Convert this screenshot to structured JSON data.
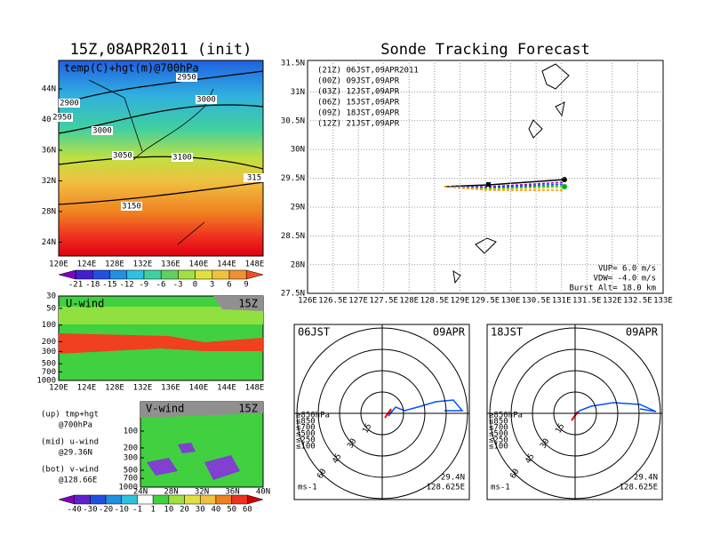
{
  "left_map": {
    "title": "15Z,08APR2011 (init)",
    "label": "temp(C)+hgt(m)@700hPa",
    "yticks": [
      "44N",
      "40N",
      "36N",
      "32N",
      "28N",
      "24N"
    ],
    "xticks": [
      "120E",
      "124E",
      "128E",
      "132E",
      "136E",
      "140E",
      "144E",
      "148E"
    ],
    "contour_labels": [
      "2900",
      "2950",
      "2950",
      "3000",
      "3000",
      "3050",
      "3100",
      "3150",
      "315"
    ],
    "colorbar": [
      -21,
      -18,
      -15,
      -12,
      -9,
      -6,
      -3,
      0,
      3,
      6,
      9
    ]
  },
  "u_wind": {
    "label": "U-wind",
    "time": "15Z",
    "yticks": [
      30,
      50,
      100,
      200,
      300,
      500,
      700,
      1000
    ],
    "xticks": [
      "120E",
      "124E",
      "128E",
      "132E",
      "136E",
      "140E",
      "144E",
      "148E"
    ]
  },
  "notes": [
    "(up) tmp+hgt",
    "@700hPa",
    "(mid) u-wind",
    "@29.36N",
    "(bot) v-wind",
    "@128.66E"
  ],
  "v_wind": {
    "label": "V-wind",
    "time": "15Z",
    "yticks": [
      100,
      200,
      300,
      500,
      700,
      1000
    ],
    "xticks": [
      "24N",
      "28N",
      "32N",
      "36N",
      "40N"
    ],
    "colorbar": [
      -40,
      -30,
      -20,
      -10,
      -1,
      1,
      10,
      20,
      30,
      40,
      50,
      60
    ]
  },
  "tracking": {
    "title": "Sonde Tracking Forecast",
    "yticks": [
      "31.5N",
      "31N",
      "30.5N",
      "30N",
      "29.5N",
      "29N",
      "28.5N",
      "28N",
      "27.5N"
    ],
    "xticks": [
      "126E",
      "126.5E",
      "127E",
      "127.5E",
      "128E",
      "128.5E",
      "129E",
      "129.5E",
      "130E",
      "130.5E",
      "131E",
      "131.5E",
      "132E",
      "132.5E",
      "133E"
    ],
    "legend": [
      {
        "text": "(21Z) 06JST,09APR2011",
        "color": "#000000"
      },
      {
        "text": "(00Z) 09JST,09APR",
        "color": "#a000c8"
      },
      {
        "text": "(03Z) 12JST,09APR",
        "color": "#0050ff"
      },
      {
        "text": "(06Z) 15JST,09APR",
        "color": "#00b400"
      },
      {
        "text": "(09Z) 18JST,09APR",
        "color": "#e6c800"
      },
      {
        "text": "(12Z) 21JST,09APR",
        "color": "#ff8c00"
      }
    ],
    "params": [
      "VUP= 6.0 m/s",
      "VDW= -4.0 m/s",
      "Burst Alt= 18.0 km"
    ]
  },
  "hodographs": [
    {
      "time": "06JST",
      "date": "09APR",
      "rings": [
        "15",
        "30",
        "45",
        "60"
      ],
      "lat": "29.4N",
      "lon": "128.625E",
      "unit": "ms-1",
      "levels": [
        {
          "text": "≥850hPa",
          "color": "#ff0000"
        },
        {
          "text": "≤850",
          "color": "#ff8c00"
        },
        {
          "text": "≤700",
          "color": "#e6c800"
        },
        {
          "text": "≤500",
          "color": "#00c800"
        },
        {
          "text": "≤250",
          "color": "#00c8c8"
        },
        {
          "text": "≤100",
          "color": "#0050ff"
        }
      ]
    },
    {
      "time": "18JST",
      "date": "09APR",
      "rings": [
        "15",
        "30",
        "45",
        "60"
      ],
      "lat": "29.4N",
      "lon": "128.625E",
      "unit": "ms-1",
      "levels": [
        {
          "text": "≥850hPa",
          "color": "#ff0000"
        },
        {
          "text": "≤850",
          "color": "#ff8c00"
        },
        {
          "text": "≤700",
          "color": "#e6c800"
        },
        {
          "text": "≤500",
          "color": "#00c800"
        },
        {
          "text": "≤250",
          "color": "#00c8c8"
        },
        {
          "text": "≤100",
          "color": "#0050ff"
        }
      ]
    }
  ]
}
